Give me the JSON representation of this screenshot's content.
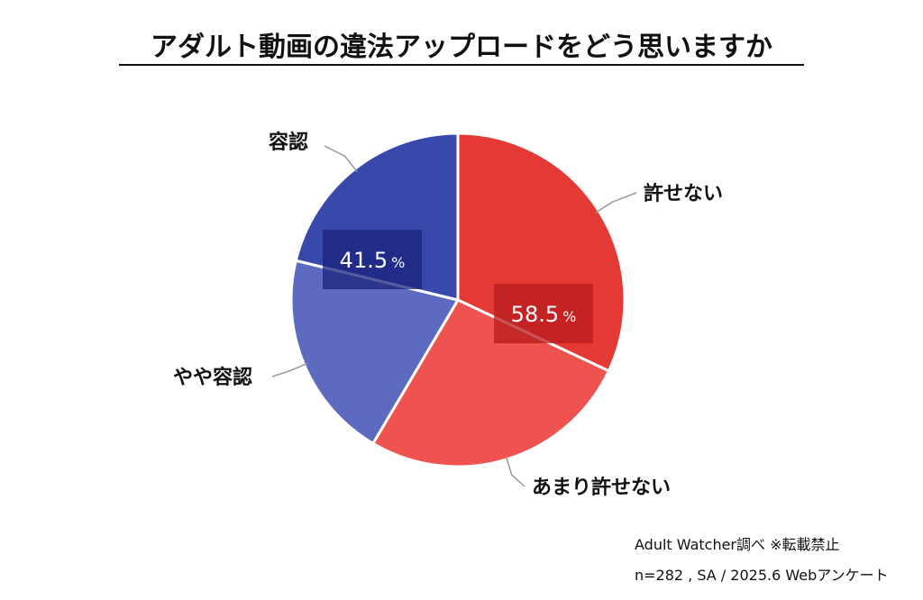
{
  "chart_data": {
    "type": "pie",
    "title": "アダルト動画の違法アップロードをどう思いますか",
    "slices": [
      {
        "label": "許せない",
        "value": 32.0,
        "color": "#e53935"
      },
      {
        "label": "あまり許せない",
        "value": 26.5,
        "color": "#ef5350"
      },
      {
        "label": "やや容認",
        "value": 20.3,
        "color": "#5c6bc0"
      },
      {
        "label": "容認",
        "value": 21.2,
        "color": "#3949ab"
      }
    ],
    "groups": [
      {
        "value": "58.5",
        "unit": "%",
        "color": "#b71c1c"
      },
      {
        "value": "41.5",
        "unit": "%",
        "color": "#1a237e"
      }
    ],
    "start": "12 o'clock",
    "direction": "clockwise",
    "legend": "none"
  },
  "source": {
    "line1": "Adult Watcher調べ ※転載禁止",
    "line2": "n=282 , SA / 2025.6 Webアンケート"
  }
}
